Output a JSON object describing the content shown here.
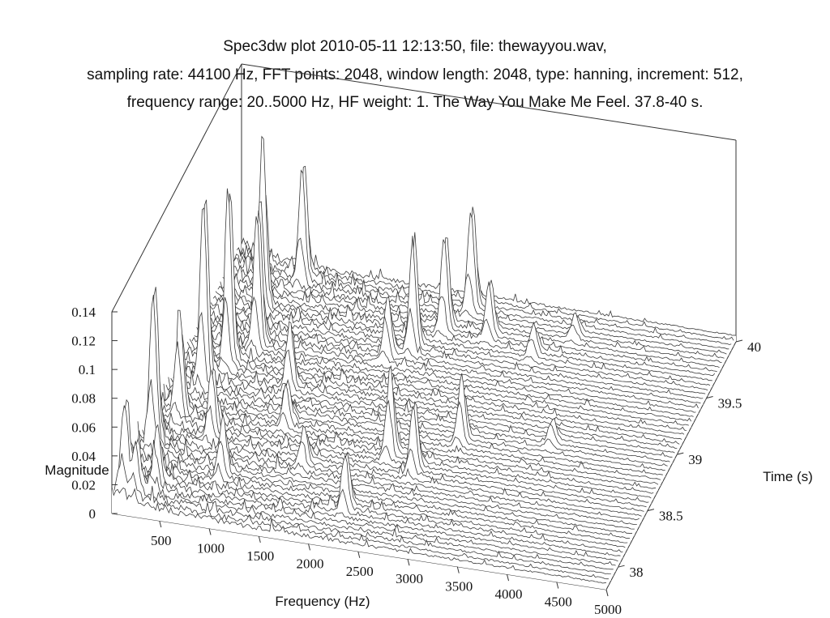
{
  "chart_data": {
    "type": "surface3d",
    "title_lines": [
      "Spec3dw plot 2010-05-11 12:13:50, file: thewayyou.wav,",
      "sampling rate: 44100 Hz, FFT points: 2048, window length: 2048, type: hanning, increment: 512,",
      "frequency range: 20..5000 Hz, HF weight: 1. The Way You Make Me Feel. 37.8-40 s."
    ],
    "xlabel": "Frequency (Hz)",
    "ylabel": "Time (s)",
    "zlabel": "Magnitude",
    "xlim": [
      20,
      5000
    ],
    "ylim": [
      37.8,
      40
    ],
    "zlim": [
      0,
      0.14
    ],
    "x_ticks": [
      "500",
      "1000",
      "1500",
      "2000",
      "2500",
      "3000",
      "3500",
      "4000",
      "4500",
      "5000"
    ],
    "y_ticks": [
      "38",
      "38.5",
      "39",
      "39.5",
      "40"
    ],
    "z_ticks": [
      "0",
      "0.02",
      "0.04",
      "0.06",
      "0.08",
      "0.1",
      "0.12",
      "0.14"
    ],
    "line_color": "#3a3a3a",
    "peaks": [
      {
        "freq": 100,
        "time": 37.9,
        "mag": 0.065
      },
      {
        "freq": 210,
        "time": 37.9,
        "mag": 0.035
      },
      {
        "freq": 150,
        "time": 38.3,
        "mag": 0.12
      },
      {
        "freq": 360,
        "time": 38.0,
        "mag": 0.04
      },
      {
        "freq": 230,
        "time": 38.6,
        "mag": 0.07
      },
      {
        "freq": 300,
        "time": 38.9,
        "mag": 0.14
      },
      {
        "freq": 430,
        "time": 39.1,
        "mag": 0.13
      },
      {
        "freq": 600,
        "time": 39.3,
        "mag": 0.1
      },
      {
        "freq": 470,
        "time": 39.6,
        "mag": 0.12
      },
      {
        "freq": 700,
        "time": 39.9,
        "mag": 0.085
      },
      {
        "freq": 620,
        "time": 38.5,
        "mag": 0.05
      },
      {
        "freq": 900,
        "time": 38.2,
        "mag": 0.04
      },
      {
        "freq": 1100,
        "time": 39.0,
        "mag": 0.045
      },
      {
        "freq": 1250,
        "time": 38.7,
        "mag": 0.03
      },
      {
        "freq": 1850,
        "time": 39.4,
        "mag": 0.04
      },
      {
        "freq": 2050,
        "time": 39.5,
        "mag": 0.08
      },
      {
        "freq": 2250,
        "time": 39.7,
        "mag": 0.07
      },
      {
        "freq": 2400,
        "time": 39.9,
        "mag": 0.075
      },
      {
        "freq": 2700,
        "time": 39.7,
        "mag": 0.04
      },
      {
        "freq": 2350,
        "time": 38.6,
        "mag": 0.06
      },
      {
        "freq": 2650,
        "time": 38.5,
        "mag": 0.05
      },
      {
        "freq": 2950,
        "time": 38.8,
        "mag": 0.045
      },
      {
        "freq": 2200,
        "time": 38.1,
        "mag": 0.04
      },
      {
        "freq": 3200,
        "time": 39.6,
        "mag": 0.02
      },
      {
        "freq": 3500,
        "time": 39.8,
        "mag": 0.015
      },
      {
        "freq": 1600,
        "time": 38.4,
        "mag": 0.025
      },
      {
        "freq": 3800,
        "time": 38.9,
        "mag": 0.015
      }
    ],
    "grid": false,
    "legend": "none"
  }
}
